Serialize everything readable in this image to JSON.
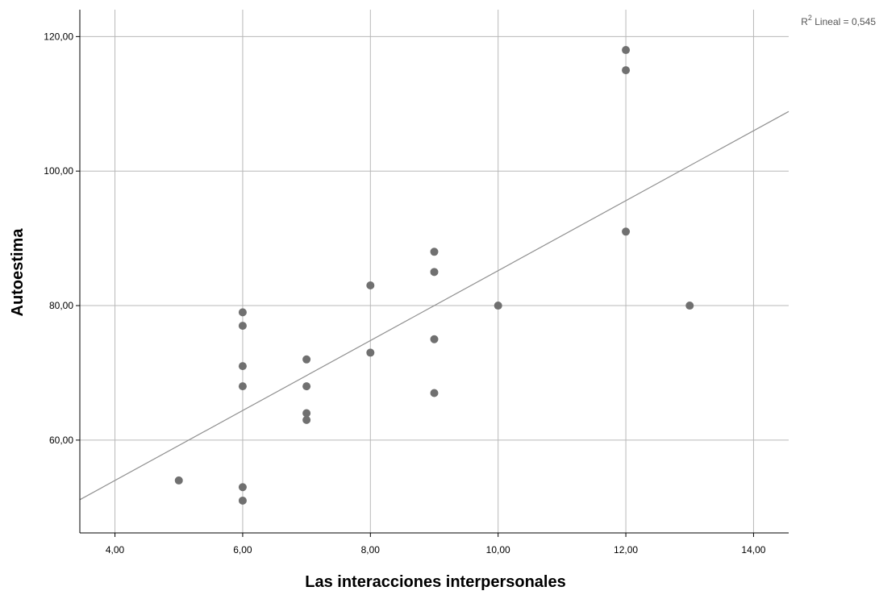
{
  "chart_data": {
    "type": "scatter",
    "xlabel": "Las interacciones interpersonales",
    "ylabel": "Autoestima",
    "xlim": [
      3.45,
      14.55
    ],
    "ylim": [
      46.2,
      124.0
    ],
    "x_ticks": [
      "4,00",
      "6,00",
      "8,00",
      "10,00",
      "12,00",
      "14,00"
    ],
    "x_tick_values": [
      4,
      6,
      8,
      10,
      12,
      14
    ],
    "y_ticks": [
      "60,00",
      "80,00",
      "100,00",
      "120,00"
    ],
    "y_tick_values": [
      60,
      80,
      100,
      120
    ],
    "grid": true,
    "r2_annotation": {
      "base": "R",
      "superscript": "2",
      "text": " Lineal = 0,545"
    },
    "fit_line": {
      "slope": 5.2,
      "intercept": 33.2,
      "x_range": [
        3.45,
        14.55
      ]
    },
    "points": [
      {
        "x": 5,
        "y": 54
      },
      {
        "x": 6,
        "y": 79
      },
      {
        "x": 6,
        "y": 77
      },
      {
        "x": 6,
        "y": 71
      },
      {
        "x": 6,
        "y": 68
      },
      {
        "x": 6,
        "y": 53
      },
      {
        "x": 6,
        "y": 51
      },
      {
        "x": 7,
        "y": 72
      },
      {
        "x": 7,
        "y": 68
      },
      {
        "x": 7,
        "y": 64
      },
      {
        "x": 7,
        "y": 63
      },
      {
        "x": 8,
        "y": 83
      },
      {
        "x": 8,
        "y": 73
      },
      {
        "x": 9,
        "y": 88
      },
      {
        "x": 9,
        "y": 85
      },
      {
        "x": 9,
        "y": 75
      },
      {
        "x": 9,
        "y": 67
      },
      {
        "x": 10,
        "y": 80
      },
      {
        "x": 12,
        "y": 118
      },
      {
        "x": 12,
        "y": 115
      },
      {
        "x": 12,
        "y": 91
      },
      {
        "x": 13,
        "y": 80
      }
    ],
    "colors": {
      "point": "#707070",
      "grid": "#b8b8b8",
      "fit_line": "#909090",
      "axis": "#000000"
    }
  }
}
